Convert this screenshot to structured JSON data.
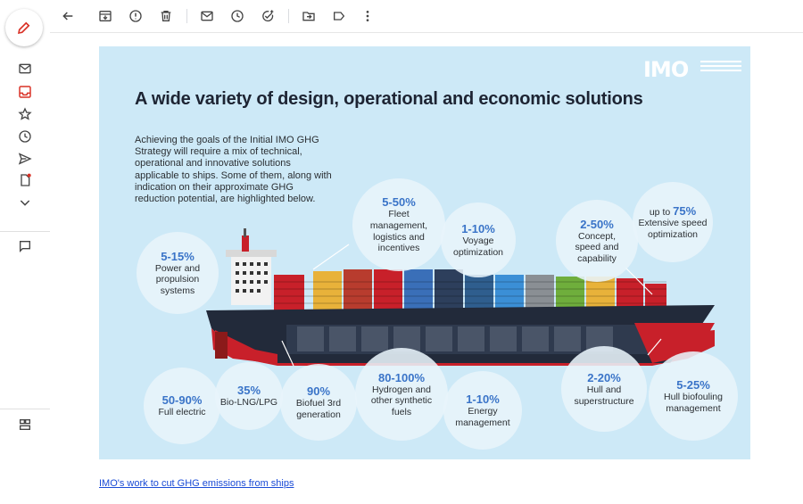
{
  "rail": {
    "compose_icon": "pencil-icon",
    "items": [
      "mail-icon",
      "inbox-icon",
      "star-icon",
      "clock-icon",
      "send-icon",
      "draft-icon",
      "chevron-down-icon",
      "chat-icon",
      "apps-icon"
    ]
  },
  "toolbar": {
    "icons": [
      "back-arrow-icon",
      "archive-icon",
      "report-spam-icon",
      "delete-icon",
      "mark-unread-icon",
      "snooze-icon",
      "add-task-icon",
      "move-to-icon",
      "label-icon",
      "more-vertical-icon"
    ]
  },
  "infographic": {
    "logo": "IMO",
    "title": "A wide variety of design, operational and economic solutions",
    "intro": "Achieving the goals of the Initial IMO GHG Strategy will require a mix of technical, operational and innovative solutions applicable to ships. Some of them, along with indication on their approximate GHG reduction potential, are highlighted below.",
    "bubbles": [
      {
        "pct": "5-15%",
        "label": "Power and propulsion systems"
      },
      {
        "pct": "5-50%",
        "label": "Fleet management, logistics and incentives"
      },
      {
        "pct": "1-10%",
        "label": "Voyage optimization"
      },
      {
        "pct": "2-50%",
        "label": "Concept, speed and capability"
      },
      {
        "prefix": "up to",
        "pct": "75%",
        "label": "Extensive speed optimization"
      },
      {
        "pct": "50-90%",
        "label": "Full electric"
      },
      {
        "pct": "35%",
        "label": "Bio-LNG/LPG"
      },
      {
        "pct": "90%",
        "label": "Biofuel 3rd generation"
      },
      {
        "pct": "80-100%",
        "label": "Hydrogen and other synthetic fuels"
      },
      {
        "pct": "1-10%",
        "label": "Energy management"
      },
      {
        "pct": "2-20%",
        "label": "Hull and superstructure"
      },
      {
        "pct": "5-25%",
        "label": "Hull biofouling management"
      }
    ],
    "colors": {
      "background": "#cde9f7",
      "accent": "#3a74c8",
      "hull_red": "#c8202a",
      "hull_dark": "#222a3a"
    }
  },
  "link": "IMO's work to cut GHG emissions from ships"
}
